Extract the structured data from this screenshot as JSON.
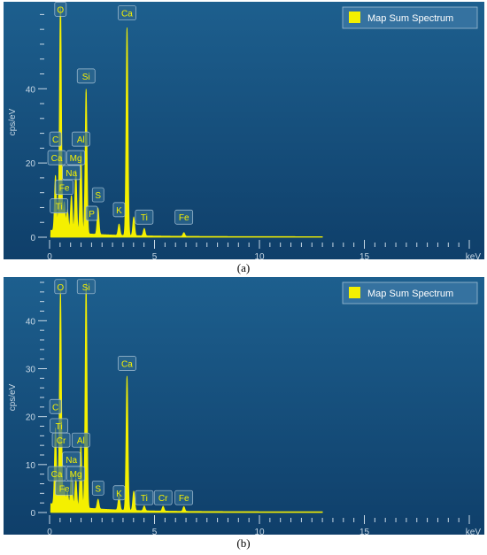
{
  "chart_data": [
    {
      "panel": "a",
      "type": "line",
      "legend_label": "Map Sum Spectrum",
      "legend_position": "top-right",
      "ylabel": "cps/eV",
      "xlabel": "keV",
      "xlim": [
        0,
        20
      ],
      "ylim": [
        0,
        62
      ],
      "x_ticks": [
        "0",
        "5",
        "10",
        "15"
      ],
      "y_ticks": [
        "0",
        "20",
        "40"
      ],
      "y_tick_values": [
        0,
        20,
        40
      ],
      "peaks": [
        {
          "x": 0.28,
          "y": 15
        },
        {
          "x": 0.45,
          "y": 4
        },
        {
          "x": 0.52,
          "y": 62
        },
        {
          "x": 0.7,
          "y": 8
        },
        {
          "x": 0.85,
          "y": 6
        },
        {
          "x": 1.04,
          "y": 10
        },
        {
          "x": 1.25,
          "y": 17
        },
        {
          "x": 1.49,
          "y": 22
        },
        {
          "x": 1.74,
          "y": 39
        },
        {
          "x": 2.31,
          "y": 7
        },
        {
          "x": 3.31,
          "y": 3
        },
        {
          "x": 3.69,
          "y": 56
        },
        {
          "x": 4.01,
          "y": 5
        },
        {
          "x": 4.51,
          "y": 2
        },
        {
          "x": 6.4,
          "y": 1
        }
      ],
      "element_labels": [
        {
          "text": "O",
          "x": 0.52,
          "y": 60
        },
        {
          "text": "Ca",
          "x": 3.69,
          "y": 59
        },
        {
          "text": "Si",
          "x": 1.74,
          "y": 42
        },
        {
          "text": "C",
          "x": 0.28,
          "y": 25
        },
        {
          "text": "Al",
          "x": 1.49,
          "y": 25
        },
        {
          "text": "Ca",
          "x": 0.34,
          "y": 20
        },
        {
          "text": "Mg",
          "x": 1.25,
          "y": 20
        },
        {
          "text": "Na",
          "x": 1.04,
          "y": 16
        },
        {
          "text": "Fe",
          "x": 0.7,
          "y": 12
        },
        {
          "text": "S",
          "x": 2.31,
          "y": 10
        },
        {
          "text": "Ti",
          "x": 0.45,
          "y": 7
        },
        {
          "text": "K",
          "x": 3.31,
          "y": 6
        },
        {
          "text": "P",
          "x": 2.01,
          "y": 5
        },
        {
          "text": "Ti",
          "x": 4.51,
          "y": 4
        },
        {
          "text": "Fe",
          "x": 6.4,
          "y": 4
        }
      ]
    },
    {
      "panel": "b",
      "type": "line",
      "legend_label": "Map Sum Spectrum",
      "legend_position": "top-right",
      "ylabel": "cps/eV",
      "xlabel": "keV",
      "xlim": [
        0,
        20
      ],
      "ylim": [
        0,
        48
      ],
      "x_ticks": [
        "0",
        "5",
        "10",
        "15"
      ],
      "y_ticks": [
        "0",
        "10",
        "20",
        "30",
        "40"
      ],
      "y_tick_values": [
        0,
        10,
        20,
        30,
        40
      ],
      "peaks": [
        {
          "x": 0.28,
          "y": 16
        },
        {
          "x": 0.45,
          "y": 3
        },
        {
          "x": 0.52,
          "y": 44
        },
        {
          "x": 0.7,
          "y": 4
        },
        {
          "x": 0.85,
          "y": 3
        },
        {
          "x": 1.04,
          "y": 7
        },
        {
          "x": 1.25,
          "y": 6
        },
        {
          "x": 1.49,
          "y": 13
        },
        {
          "x": 1.74,
          "y": 47
        },
        {
          "x": 2.31,
          "y": 2
        },
        {
          "x": 3.31,
          "y": 3
        },
        {
          "x": 3.69,
          "y": 28
        },
        {
          "x": 4.01,
          "y": 4
        },
        {
          "x": 4.51,
          "y": 1
        },
        {
          "x": 5.41,
          "y": 1
        },
        {
          "x": 6.4,
          "y": 1
        }
      ],
      "element_labels": [
        {
          "text": "O",
          "x": 0.52,
          "y": 46
        },
        {
          "text": "Si",
          "x": 1.74,
          "y": 46
        },
        {
          "text": "Ca",
          "x": 3.69,
          "y": 30
        },
        {
          "text": "C",
          "x": 0.28,
          "y": 21
        },
        {
          "text": "Ti",
          "x": 0.45,
          "y": 17
        },
        {
          "text": "Cr",
          "x": 0.55,
          "y": 14
        },
        {
          "text": "Al",
          "x": 1.49,
          "y": 14
        },
        {
          "text": "Na",
          "x": 1.04,
          "y": 10
        },
        {
          "text": "Ca",
          "x": 0.34,
          "y": 7
        },
        {
          "text": "Mg",
          "x": 1.25,
          "y": 7
        },
        {
          "text": "Fe",
          "x": 0.7,
          "y": 4
        },
        {
          "text": "S",
          "x": 2.31,
          "y": 4
        },
        {
          "text": "K",
          "x": 3.31,
          "y": 3
        },
        {
          "text": "Ti",
          "x": 4.51,
          "y": 2
        },
        {
          "text": "Cr",
          "x": 5.41,
          "y": 2
        },
        {
          "text": "Fe",
          "x": 6.4,
          "y": 2
        }
      ]
    }
  ],
  "captions": {
    "a": "(a)",
    "b": "(b)"
  },
  "colors": {
    "background_top": "#1d5f8e",
    "background_bottom": "#0f3f6a",
    "spectrum": "#f4f000",
    "label_box": "#2f6a92",
    "label_text": "#f4f000",
    "axis_text": "#c9d9e6",
    "legend_bg": "#3a76a3",
    "legend_text": "#ffffff"
  }
}
